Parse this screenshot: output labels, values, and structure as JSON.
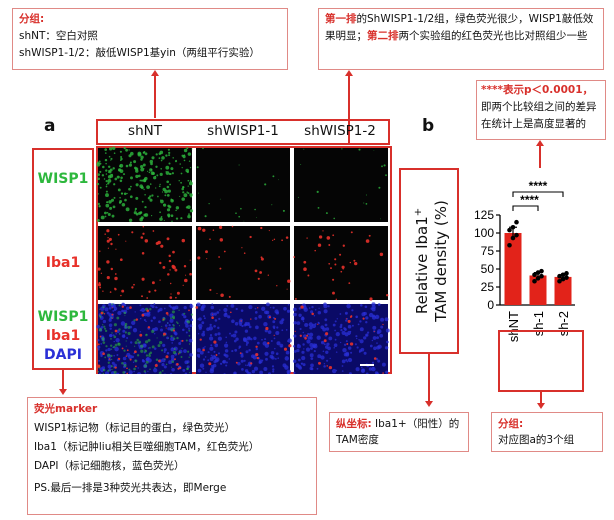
{
  "notes": {
    "top_left": {
      "title": "分组:",
      "line1": "shNT：空白对照",
      "line2": "shWISP1-1/2：敲低WISP1基yin（两组平行实验）"
    },
    "top_right": {
      "hl1": "第一排",
      "text1": "的ShWISP1-1/2组，绿色荧光很少，WISP1敲低效果明显；",
      "hl2": "第二排",
      "text2": "两个实验组的红色荧光也比对照组少一些"
    },
    "stats": {
      "hl": "****表示p＜0.0001，",
      "text": "即两个比较组之间的差异在统计上是高度显著的"
    },
    "markers": {
      "title": "荧光marker",
      "line1": "WISP1标记物（标记目的蛋白，绿色荧光）",
      "line2": "Iba1（标记肿liu相关巨噬细胞TAM，红色荧光）",
      "line3": "DAPI（标记细胞核，蓝色荧光）",
      "line4": "PS.最后一排是3种荧光共表达，即Merge"
    },
    "ylabel_note": {
      "hl": "纵坐标:",
      "text": " Iba1+（阳性）的TAM密度"
    },
    "group_note": {
      "hl": "分组:",
      "text": "对应图a的3个组"
    }
  },
  "panel_a": {
    "letter": "a",
    "columns": [
      "shNT",
      "shWISP1-1",
      "shWISP1-2"
    ],
    "rows": {
      "wisp1": "WISP1",
      "iba1": "Iba1",
      "merge_wisp1": "WISP1",
      "merge_iba1": "Iba1",
      "merge_dapi": "DAPI"
    },
    "colors": {
      "green": "#2db83d",
      "red": "#e8312a",
      "blue": "#2a2fd6"
    }
  },
  "panel_b": {
    "letter": "b"
  },
  "chart_data": {
    "type": "bar",
    "categories": [
      "shNT",
      "sh-1",
      "sh-2"
    ],
    "values": [
      100,
      41,
      39
    ],
    "errors": [
      8,
      4,
      3
    ],
    "points": [
      [
        83,
        93,
        97,
        104,
        108,
        115
      ],
      [
        33,
        37,
        40,
        42,
        45,
        47
      ],
      [
        33,
        36,
        38,
        40,
        42,
        44
      ]
    ],
    "ylabel_line1": "Relative Iba1",
    "ylabel_sup": "+",
    "ylabel_line2": "TAM density (%)",
    "ylim": [
      0,
      125
    ],
    "yticks": [
      0,
      25,
      50,
      75,
      100,
      125
    ],
    "significance": [
      "****",
      "****"
    ],
    "bar_color": "#e2231a"
  }
}
